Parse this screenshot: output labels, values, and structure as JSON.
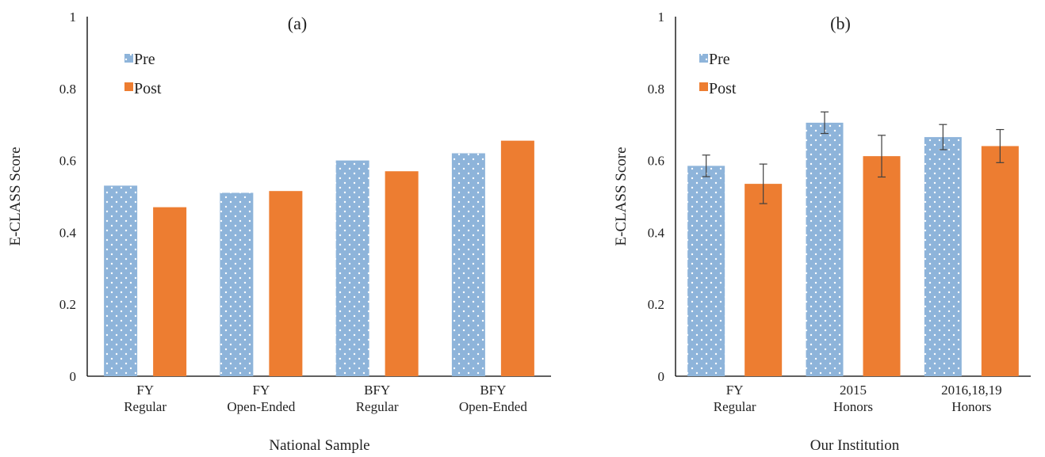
{
  "chart_data": [
    {
      "type": "bar",
      "title": "(a)",
      "xlabel": "National Sample",
      "ylabel": "E-CLASS Score",
      "ylim": [
        0,
        1
      ],
      "yticks": [
        "0",
        "0.2",
        "0.4",
        "0.6",
        "0.8",
        "1"
      ],
      "categories": [
        [
          "FY",
          "Regular"
        ],
        [
          "FY",
          "Open-Ended"
        ],
        [
          "BFY",
          "Regular"
        ],
        [
          "BFY",
          "Open-Ended"
        ]
      ],
      "series": [
        {
          "name": "Pre",
          "color": "#8eb4da",
          "pattern": "white dots",
          "values": [
            0.53,
            0.51,
            0.6,
            0.62
          ]
        },
        {
          "name": "Post",
          "color": "#ed7d31",
          "values": [
            0.47,
            0.515,
            0.57,
            0.655
          ]
        }
      ],
      "legend": "top-left",
      "grid": false
    },
    {
      "type": "bar",
      "title": "(b)",
      "xlabel": "Our Institution",
      "ylabel": "E-CLASS Score",
      "ylim": [
        0,
        1
      ],
      "yticks": [
        "0",
        "0.2",
        "0.4",
        "0.6",
        "0.8",
        "1"
      ],
      "categories": [
        [
          "FY",
          "Regular"
        ],
        [
          "2015",
          "Honors"
        ],
        [
          "2016,18,19",
          "Honors"
        ]
      ],
      "series": [
        {
          "name": "Pre",
          "color": "#8eb4da",
          "pattern": "white dots",
          "values": [
            0.585,
            0.705,
            0.665
          ],
          "errors": [
            0.03,
            0.03,
            0.035
          ]
        },
        {
          "name": "Post",
          "color": "#ed7d31",
          "values": [
            0.535,
            0.612,
            0.64
          ],
          "errors": [
            0.055,
            0.058,
            0.046
          ]
        }
      ],
      "legend": "top-left",
      "grid": false
    }
  ]
}
